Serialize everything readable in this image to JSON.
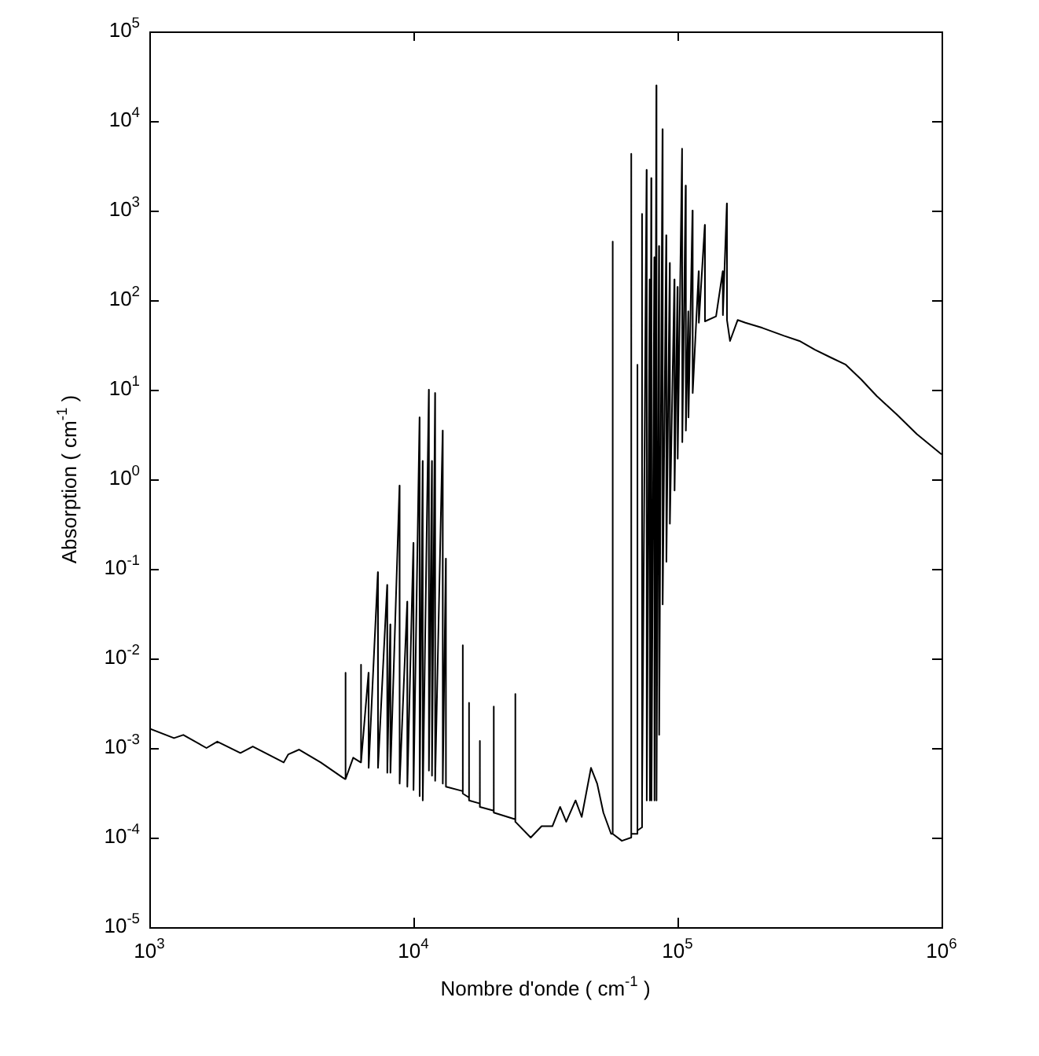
{
  "chart_data": {
    "type": "line",
    "xlabel": "Nombre d'onde ( cm$^{-1}$ )",
    "ylabel": "Absorption ( cm$^{-1}$ )",
    "log": "xy",
    "xlim": [
      1000,
      1000000
    ],
    "ylim": [
      1e-05,
      100000
    ],
    "xticks": [
      {
        "value": 1000,
        "label": "10$^{3}$"
      },
      {
        "value": 10000,
        "label": "10$^{4}$"
      },
      {
        "value": 100000,
        "label": "10$^{5}$"
      },
      {
        "value": 1000000,
        "label": "10$^{6}$"
      }
    ],
    "yticks": [
      {
        "value": 1e-05,
        "label": "10$^{-5}$"
      },
      {
        "value": 0.0001,
        "label": "10$^{-4}$"
      },
      {
        "value": 0.001,
        "label": "10$^{-3}$"
      },
      {
        "value": 0.01,
        "label": "10$^{-2}$"
      },
      {
        "value": 0.1,
        "label": "10$^{-1}$"
      },
      {
        "value": 1,
        "label": "10$^{0}$"
      },
      {
        "value": 10,
        "label": "10$^{1}$"
      },
      {
        "value": 100,
        "label": "10$^{2}$"
      },
      {
        "value": 1000,
        "label": "10$^{3}$"
      },
      {
        "value": 10000,
        "label": "10$^{4}$"
      },
      {
        "value": 100000,
        "label": "10$^{5}$"
      }
    ],
    "series": [
      {
        "color": "#000000",
        "x": [
          1000,
          1240,
          1345,
          1646,
          1809,
          2213,
          2465,
          3228,
          3360,
          3693,
          4458,
          5383,
          5520,
          5530,
          5540,
          5916,
          6320,
          6329,
          6340,
          6761,
          6770,
          7335,
          7345,
          7955,
          7965,
          8174,
          8185,
          8859,
          8870,
          9476,
          9485,
          10000,
          10010,
          10550,
          10560,
          10840,
          10850,
          11440,
          11450,
          11750,
          11760,
          12080,
          12090,
          12910,
          12920,
          13270,
          13280,
          15370,
          15380,
          15390,
          16230,
          16240,
          16250,
          17840,
          17850,
          17860,
          20140,
          20150,
          20160,
          24310,
          24320,
          24330,
          27820,
          30580,
          33600,
          35940,
          37910,
          41120,
          43390,
          47050,
          49650,
          52410,
          56050,
          56800,
          56810,
          56900,
          61580,
          66760,
          66770,
          66900,
          70460,
          70470,
          70600,
          73360,
          73370,
          73500,
          76380,
          76500,
          78460,
          78600,
          79540,
          79700,
          81720,
          81850,
          83180,
          83300,
          85100,
          85250,
          87770,
          87900,
          90650,
          90800,
          93490,
          93600,
          97340,
          97500,
          100000,
          100200,
          104100,
          104300,
          107400,
          107600,
          109900,
          110100,
          114000,
          114200,
          120300,
          120500,
          126900,
          127100,
          140000,
          148400,
          148600,
          153800,
          154000,
          158100,
          169000,
          180800,
          209700,
          253200,
          289700,
          331600,
          379300,
          434000,
          496500,
          568100,
          676900,
          806300,
          1000000
        ],
        "values": [
          0.00165,
          0.00129,
          0.0014,
          0.001,
          0.00118,
          0.00088,
          0.00104,
          0.00069,
          0.00085,
          0.00096,
          0.00069,
          0.00047,
          0.00045,
          0.0069,
          0.00045,
          0.00078,
          0.00069,
          0.0085,
          0.00069,
          0.0069,
          0.0006,
          0.092,
          0.0006,
          0.066,
          0.00053,
          0.024,
          0.00053,
          0.85,
          0.0004,
          0.043,
          0.00037,
          0.195,
          0.00034,
          4.9,
          0.00029,
          1.6,
          0.00026,
          10,
          0.00056,
          1.6,
          0.00049,
          9.2,
          0.00043,
          3.5,
          0.0004,
          0.13,
          0.00037,
          0.00033,
          0.014,
          0.00031,
          0.00028,
          0.0032,
          0.00026,
          0.00024,
          0.0012,
          0.00022,
          0.0002,
          0.0029,
          0.00019,
          0.00016,
          0.004,
          0.00015,
          0.0001,
          0.000134,
          0.000134,
          0.00022,
          0.00015,
          0.00026,
          0.00017,
          0.0006,
          0.0004,
          0.00019,
          0.00011,
          0.00011,
          450,
          0.00011,
          9.2e-05,
          0.0001,
          4300,
          0.00011,
          0.00011,
          19,
          0.00012,
          0.00013,
          920,
          0.00026,
          2850,
          0.00026,
          170,
          0.00026,
          2300,
          0.00026,
          300,
          0.00026,
          25000,
          0.00026,
          400,
          0.0014,
          8100,
          0.04,
          530,
          0.12,
          260,
          0.32,
          170,
          0.75,
          140,
          1.7,
          4900,
          2.6,
          1900,
          3.5,
          75,
          4.9,
          1000,
          9.2,
          210,
          56,
          690,
          58,
          66,
          210,
          68,
          1200,
          60,
          35,
          60,
          56,
          49,
          40,
          35,
          28,
          23,
          19,
          13,
          8.5,
          5.3,
          3.2,
          1.9
        ]
      }
    ]
  }
}
